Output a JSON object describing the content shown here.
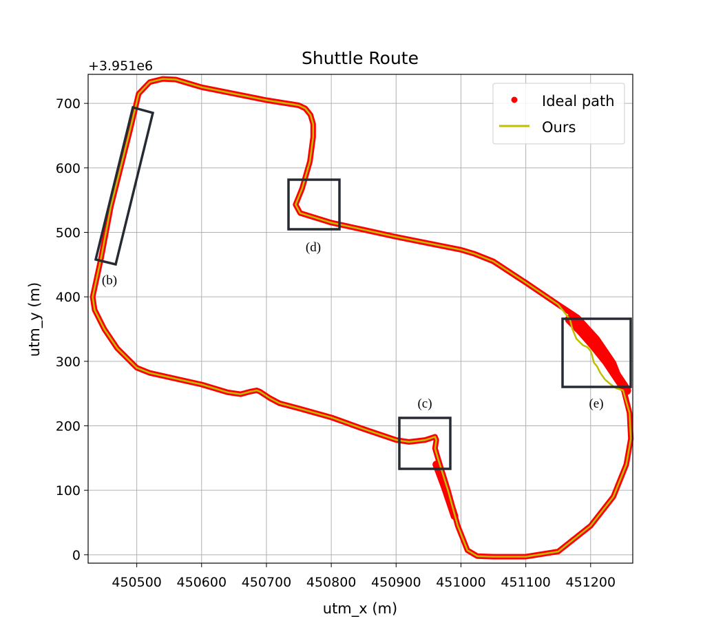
{
  "chart_data": {
    "type": "line",
    "title": "Shuttle Route",
    "xlabel": "utm_x (m)",
    "ylabel": "utm_y (m)",
    "offset_text": "+3.951e6",
    "xlim": [
      450425,
      451265
    ],
    "ylim": [
      -13,
      745
    ],
    "x_ticks": [
      450500,
      450600,
      450700,
      450800,
      450900,
      451000,
      451100,
      451200
    ],
    "y_ticks": [
      0,
      100,
      200,
      300,
      400,
      500,
      600,
      700
    ],
    "grid": true,
    "legend_position": "top-right",
    "colors": {
      "ideal": "#ff0000",
      "ours": "#bfbf00",
      "box": "#262a33"
    },
    "series": [
      {
        "name": "Ideal path",
        "style": "points",
        "x": [
          450503,
          450520,
          450540,
          450560,
          450600,
          450650,
          450700,
          450750,
          450760,
          450768,
          450772,
          450772,
          450767,
          450755,
          450745,
          450752,
          450800,
          450850,
          450900,
          450950,
          451000,
          451020,
          451050,
          451100,
          451150,
          451180,
          451210,
          451235,
          451250,
          451260,
          451262,
          451255,
          451235,
          451200,
          451150,
          451100,
          451050,
          451025,
          451010,
          450995,
          450980,
          450965,
          450960,
          450962,
          450960,
          450945,
          450920,
          450900,
          450850,
          450800,
          450750,
          450720,
          450705,
          450690,
          450685,
          450675,
          450660,
          450640,
          450600,
          450560,
          450520,
          450500,
          450470,
          450450,
          450435,
          450432,
          450445,
          450460,
          450475,
          450490,
          450503
        ],
        "y": [
          715,
          733,
          738,
          737,
          725,
          715,
          705,
          697,
          692,
          682,
          668,
          648,
          610,
          568,
          543,
          530,
          515,
          504,
          493,
          483,
          473,
          467,
          455,
          422,
          388,
          368,
          335,
          298,
          260,
          220,
          180,
          140,
          90,
          45,
          5,
          -3,
          -3,
          -2,
          7,
          45,
          100,
          148,
          165,
          178,
          183,
          178,
          175,
          178,
          195,
          213,
          227,
          235,
          243,
          253,
          255,
          253,
          249,
          252,
          264,
          273,
          282,
          290,
          320,
          350,
          380,
          400,
          460,
          540,
          600,
          660,
          715
        ]
      },
      {
        "name": "Ours",
        "style": "line",
        "x": [
          450503,
          450520,
          450540,
          450560,
          450600,
          450650,
          450700,
          450750,
          450760,
          450768,
          450772,
          450772,
          450767,
          450755,
          450745,
          450752,
          450800,
          450850,
          450900,
          450950,
          451000,
          451020,
          451050,
          451100,
          451150,
          451168,
          451172,
          451178,
          451183,
          451188,
          451195,
          451200,
          451202,
          451205,
          451210,
          451215,
          451222,
          451230,
          451240,
          451250,
          451260,
          451262,
          451255,
          451235,
          451200,
          451150,
          451100,
          451050,
          451025,
          451010,
          450995,
          450980,
          450965,
          450960,
          450962,
          450960,
          450945,
          450920,
          450900,
          450850,
          450800,
          450750,
          450720,
          450705,
          450690,
          450685,
          450675,
          450660,
          450640,
          450600,
          450560,
          450520,
          450500,
          450470,
          450450,
          450435,
          450432,
          450445,
          450460,
          450475,
          450490,
          450503
        ],
        "y": [
          715,
          733,
          738,
          737,
          725,
          715,
          705,
          697,
          692,
          682,
          668,
          648,
          610,
          568,
          543,
          530,
          515,
          504,
          493,
          483,
          473,
          467,
          455,
          422,
          388,
          365,
          350,
          335,
          330,
          325,
          322,
          316,
          310,
          298,
          292,
          282,
          272,
          265,
          258,
          255,
          220,
          180,
          140,
          90,
          45,
          5,
          -3,
          -3,
          -2,
          7,
          45,
          100,
          148,
          165,
          178,
          183,
          178,
          175,
          178,
          195,
          213,
          227,
          235,
          243,
          253,
          255,
          253,
          249,
          252,
          264,
          273,
          282,
          290,
          320,
          350,
          380,
          400,
          460,
          540,
          600,
          660,
          715
        ]
      }
    ],
    "regions": [
      {
        "label": "(b)"
      },
      {
        "label": "(c)"
      },
      {
        "label": "(d)"
      },
      {
        "label": "(e)"
      }
    ]
  }
}
